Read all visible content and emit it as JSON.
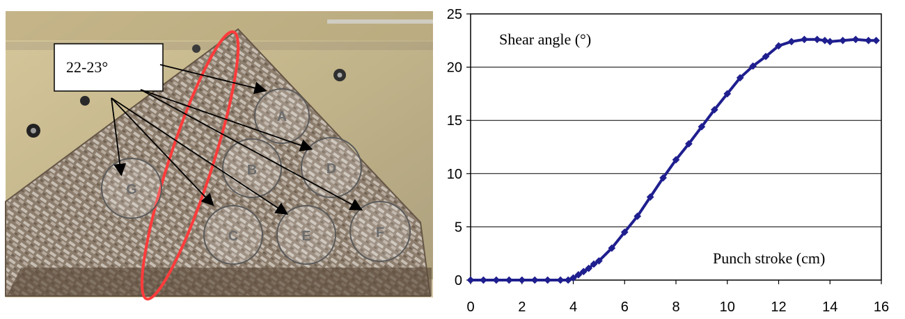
{
  "photo": {
    "callout_label": "22-23°",
    "regions": [
      {
        "id": "A",
        "label": "A"
      },
      {
        "id": "B",
        "label": "B"
      },
      {
        "id": "C",
        "label": "C"
      },
      {
        "id": "D",
        "label": "D"
      },
      {
        "id": "E",
        "label": "E"
      },
      {
        "id": "F",
        "label": "F"
      },
      {
        "id": "G",
        "label": "G"
      }
    ],
    "colors": {
      "highlight_ellipse": "#ff3b3b",
      "callout_box": "#ffffff",
      "arrow": "#000000",
      "region_ring": "#5a5a5a"
    }
  },
  "chart_data": {
    "type": "line",
    "title": "",
    "xlabel": "Punch stroke (cm)",
    "ylabel": "Shear angle (°)",
    "xlim": [
      0,
      16
    ],
    "ylim": [
      0,
      25
    ],
    "x_ticks": [
      0,
      2,
      4,
      6,
      8,
      10,
      12,
      14,
      16
    ],
    "y_ticks": [
      0,
      5,
      10,
      15,
      20,
      25
    ],
    "grid": {
      "horizontal": true,
      "vertical": false
    },
    "series": [
      {
        "color": "#1f1f8f",
        "marker": "diamond",
        "x": [
          0,
          0.5,
          1,
          1.5,
          2,
          2.5,
          3,
          3.5,
          3.8,
          4.0,
          4.2,
          4.4,
          4.6,
          4.8,
          5.0,
          5.5,
          6.0,
          6.5,
          7.0,
          7.5,
          8.0,
          8.5,
          9.0,
          9.5,
          10.0,
          10.5,
          11.0,
          11.5,
          12.0,
          12.5,
          13.0,
          13.5,
          13.8,
          14.0,
          14.5,
          15.0,
          15.5,
          15.8
        ],
        "y": [
          0,
          0,
          0,
          0,
          0,
          0,
          0,
          0,
          0,
          0.2,
          0.5,
          0.8,
          1.1,
          1.5,
          1.8,
          3.0,
          4.5,
          6.0,
          7.8,
          9.6,
          11.3,
          12.8,
          14.4,
          16.0,
          17.5,
          19.0,
          20.1,
          21.0,
          22.0,
          22.4,
          22.6,
          22.6,
          22.5,
          22.4,
          22.5,
          22.6,
          22.5,
          22.5
        ]
      }
    ]
  }
}
